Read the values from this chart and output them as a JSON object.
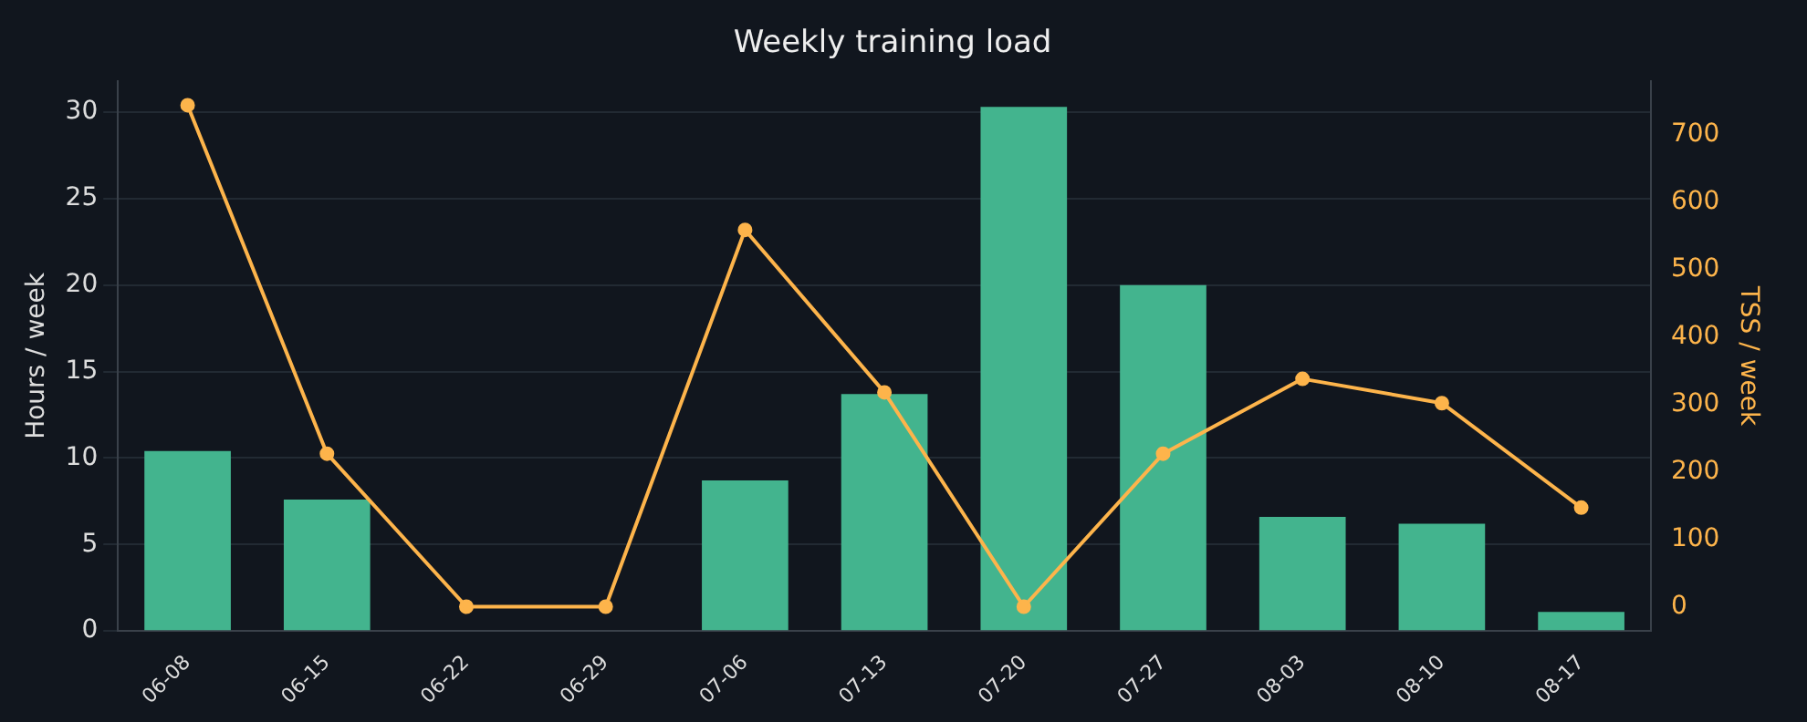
{
  "chart_data": {
    "type": "bar",
    "title": "Weekly training load",
    "ylabel": "Hours / week",
    "y2label": "TSS / week",
    "categories": [
      "06-08",
      "06-15",
      "06-22",
      "06-29",
      "07-06",
      "07-13",
      "07-20",
      "07-27",
      "08-03",
      "08-10",
      "08-17"
    ],
    "series": [
      {
        "color": "#43b48e",
        "values": [
          10.4,
          7.6,
          0,
          0,
          8.7,
          13.7,
          30.3,
          20.0,
          6.6,
          6.2,
          1.1
        ]
      },
      {
        "type": "line",
        "axis": "y2",
        "color": "#fdb44b",
        "values": [
          744,
          227,
          0,
          0,
          559,
          318,
          0,
          227,
          338,
          302,
          147
        ]
      }
    ],
    "ylim": [
      0,
      31.8
    ],
    "yticks": [
      0,
      5,
      10,
      15,
      20,
      25,
      30
    ],
    "y2lim": [
      -36,
      780
    ],
    "y2ticks": [
      0,
      100,
      200,
      300,
      400,
      500,
      600,
      700
    ],
    "grid": "y",
    "legend": false,
    "marker": "circle",
    "line_style": "solid"
  }
}
